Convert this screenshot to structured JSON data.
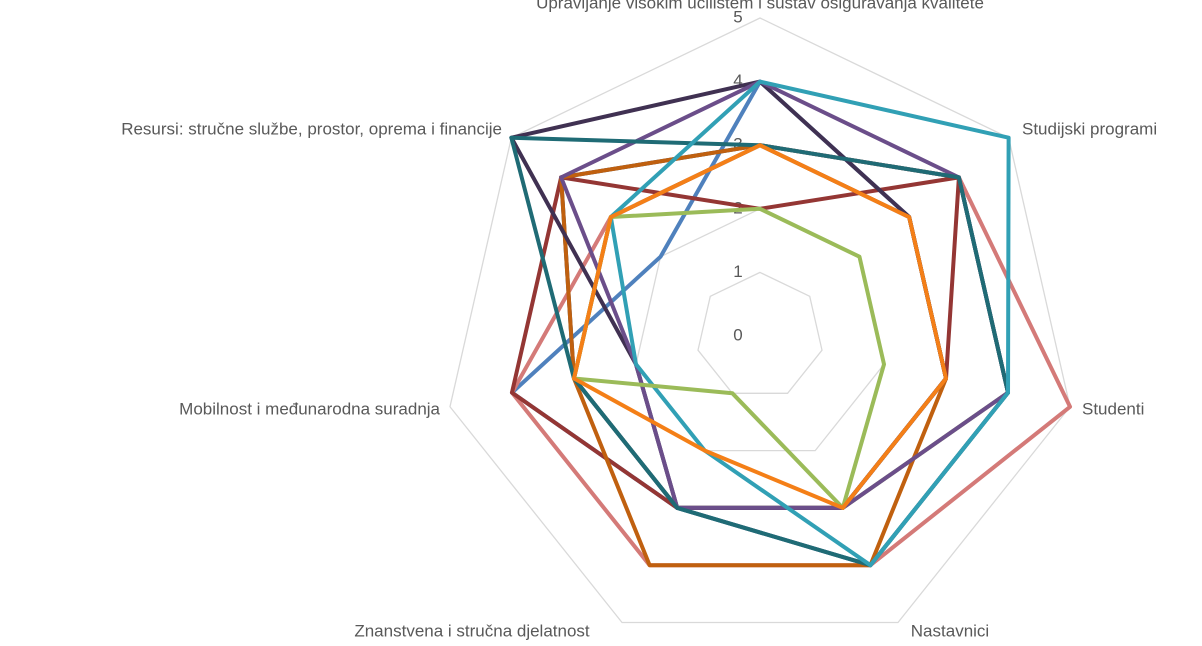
{
  "chart_data": {
    "type": "radar",
    "categories": [
      "Upravljanje visokim učilištem i sustav osiguravanja kvalitete",
      "Studijski programi",
      "Studenti",
      "Nastavnici",
      "Znanstvena i stručna djelatnost",
      "Mobilnost i međunarodna suradnja",
      "Resursi: stručne službe, prostor, oprema i financije"
    ],
    "ylim": [
      0,
      5
    ],
    "yticks": [
      0,
      1,
      2,
      3,
      4,
      5
    ],
    "grid": true,
    "series": [
      {
        "color": "#a597c9",
        "values": [
          3,
          3,
          3,
          3,
          3,
          3,
          3
        ]
      },
      {
        "color": "#77933c",
        "values": [
          3,
          4,
          4,
          3,
          3,
          3,
          3
        ]
      },
      {
        "color": "#4f81bd",
        "values": [
          4,
          3,
          3,
          3,
          3,
          4,
          2
        ]
      },
      {
        "color": "#1f497d",
        "values": [
          3,
          4,
          4,
          4,
          3,
          3,
          4
        ]
      },
      {
        "color": "#d47a78",
        "values": [
          3,
          4,
          5,
          4,
          4,
          4,
          3
        ]
      },
      {
        "color": "#943634",
        "values": [
          2,
          4,
          3,
          3,
          3,
          4,
          4
        ]
      },
      {
        "color": "#c0600f",
        "values": [
          3,
          3,
          3,
          4,
          4,
          3,
          4
        ]
      },
      {
        "color": "#403152",
        "values": [
          4,
          3,
          3,
          3,
          3,
          2,
          5
        ]
      },
      {
        "color": "#6b4e8a",
        "values": [
          4,
          4,
          4,
          3,
          3,
          2,
          4
        ]
      },
      {
        "color": "#1f6b75",
        "values": [
          3,
          4,
          4,
          4,
          3,
          3,
          5
        ]
      },
      {
        "color": "#31a0b5",
        "values": [
          4,
          5,
          4,
          4,
          2,
          2,
          3
        ]
      },
      {
        "color": "#9bbb59",
        "values": [
          2,
          2,
          2,
          3,
          1,
          3,
          3
        ]
      },
      {
        "color": "#f47f17",
        "values": [
          3,
          3,
          3,
          3,
          2,
          3,
          3
        ]
      }
    ]
  }
}
